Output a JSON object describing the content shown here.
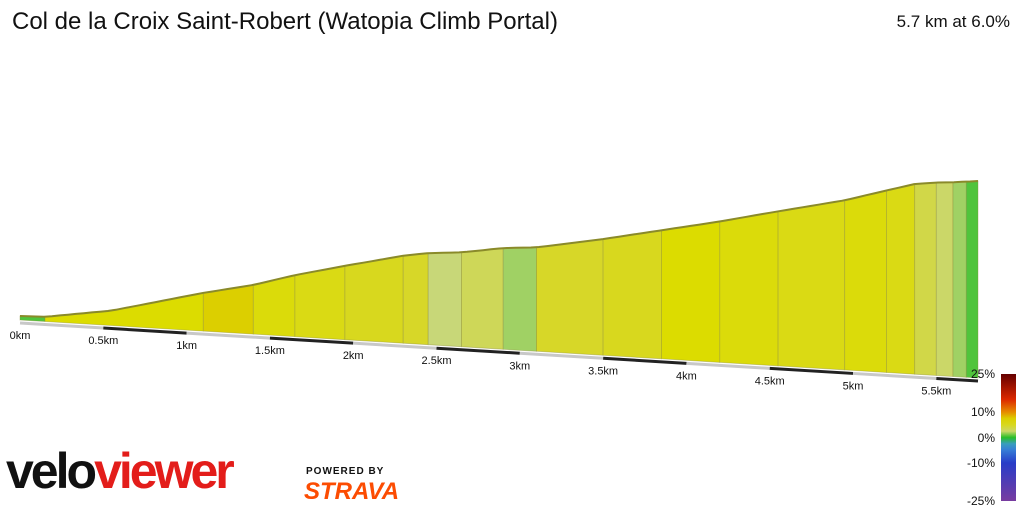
{
  "header": {
    "title": "Col de la Croix Saint-Robert (Watopia Climb Portal)",
    "summary": "5.7 km at 6.0%"
  },
  "chart_data": {
    "type": "area",
    "title": "Col de la Croix Saint-Robert (Watopia Climb Portal)",
    "subtitle": "5.7 km at 6.0%",
    "x_unit": "km",
    "xlim": [
      0,
      5.75
    ],
    "x_tick_labels": [
      "0km",
      "0.5km",
      "1km",
      "1.5km",
      "2km",
      "2.5km",
      "3km",
      "3.5km",
      "4km",
      "4.5km",
      "5km",
      "5.5km"
    ],
    "x_ticks": [
      0,
      0.5,
      1,
      1.5,
      2,
      2.5,
      3,
      3.5,
      4,
      4.5,
      5,
      5.5
    ],
    "elevation_profile": {
      "x": [
        0,
        0.15,
        0.55,
        1.1,
        1.4,
        1.65,
        1.95,
        2.3,
        2.45,
        2.65,
        2.9,
        3.1,
        3.5,
        3.85,
        4.2,
        4.55,
        4.95,
        5.2,
        5.37,
        5.5,
        5.6,
        5.68,
        5.75
      ],
      "relative_elevation": [
        0,
        0.5,
        8,
        25,
        33,
        42,
        51,
        61,
        64,
        66,
        71,
        73,
        82,
        91,
        100,
        110,
        121,
        130,
        136,
        138,
        139,
        140,
        141
      ]
    },
    "gradient_segments": [
      {
        "start": 0,
        "end": 0.15,
        "gradient": 0.5
      },
      {
        "start": 0.15,
        "end": 1.1,
        "gradient": 6.5
      },
      {
        "start": 1.1,
        "end": 1.4,
        "gradient": 7.5
      },
      {
        "start": 1.4,
        "end": 1.65,
        "gradient": 6.0
      },
      {
        "start": 1.65,
        "end": 1.95,
        "gradient": 5.5
      },
      {
        "start": 1.95,
        "end": 2.3,
        "gradient": 5.0
      },
      {
        "start": 2.3,
        "end": 2.45,
        "gradient": 4.5
      },
      {
        "start": 2.45,
        "end": 2.65,
        "gradient": 2.0
      },
      {
        "start": 2.65,
        "end": 2.9,
        "gradient": 3.0
      },
      {
        "start": 2.9,
        "end": 3.1,
        "gradient": 1.5
      },
      {
        "start": 3.1,
        "end": 3.5,
        "gradient": 4.5
      },
      {
        "start": 3.5,
        "end": 3.85,
        "gradient": 5.0
      },
      {
        "start": 3.85,
        "end": 4.2,
        "gradient": 6.5
      },
      {
        "start": 4.2,
        "end": 4.55,
        "gradient": 6.0
      },
      {
        "start": 4.55,
        "end": 4.95,
        "gradient": 5.5
      },
      {
        "start": 4.95,
        "end": 5.2,
        "gradient": 6.0
      },
      {
        "start": 5.2,
        "end": 5.37,
        "gradient": 5.5
      },
      {
        "start": 5.37,
        "end": 5.5,
        "gradient": 3.5
      },
      {
        "start": 5.5,
        "end": 5.6,
        "gradient": 2.5
      },
      {
        "start": 5.6,
        "end": 5.68,
        "gradient": 1.5
      },
      {
        "start": 5.68,
        "end": 5.75,
        "gradient": 0.5
      }
    ],
    "gradient_legend": {
      "labels": [
        "25%",
        "10%",
        "0%",
        "-10%",
        "-25%"
      ],
      "values": [
        25,
        10,
        0,
        -10,
        -25
      ]
    }
  },
  "branding": {
    "logo_part1": "velo",
    "logo_part2": "viewer",
    "powered_by": "POWERED BY",
    "strava": "STRAVA"
  }
}
